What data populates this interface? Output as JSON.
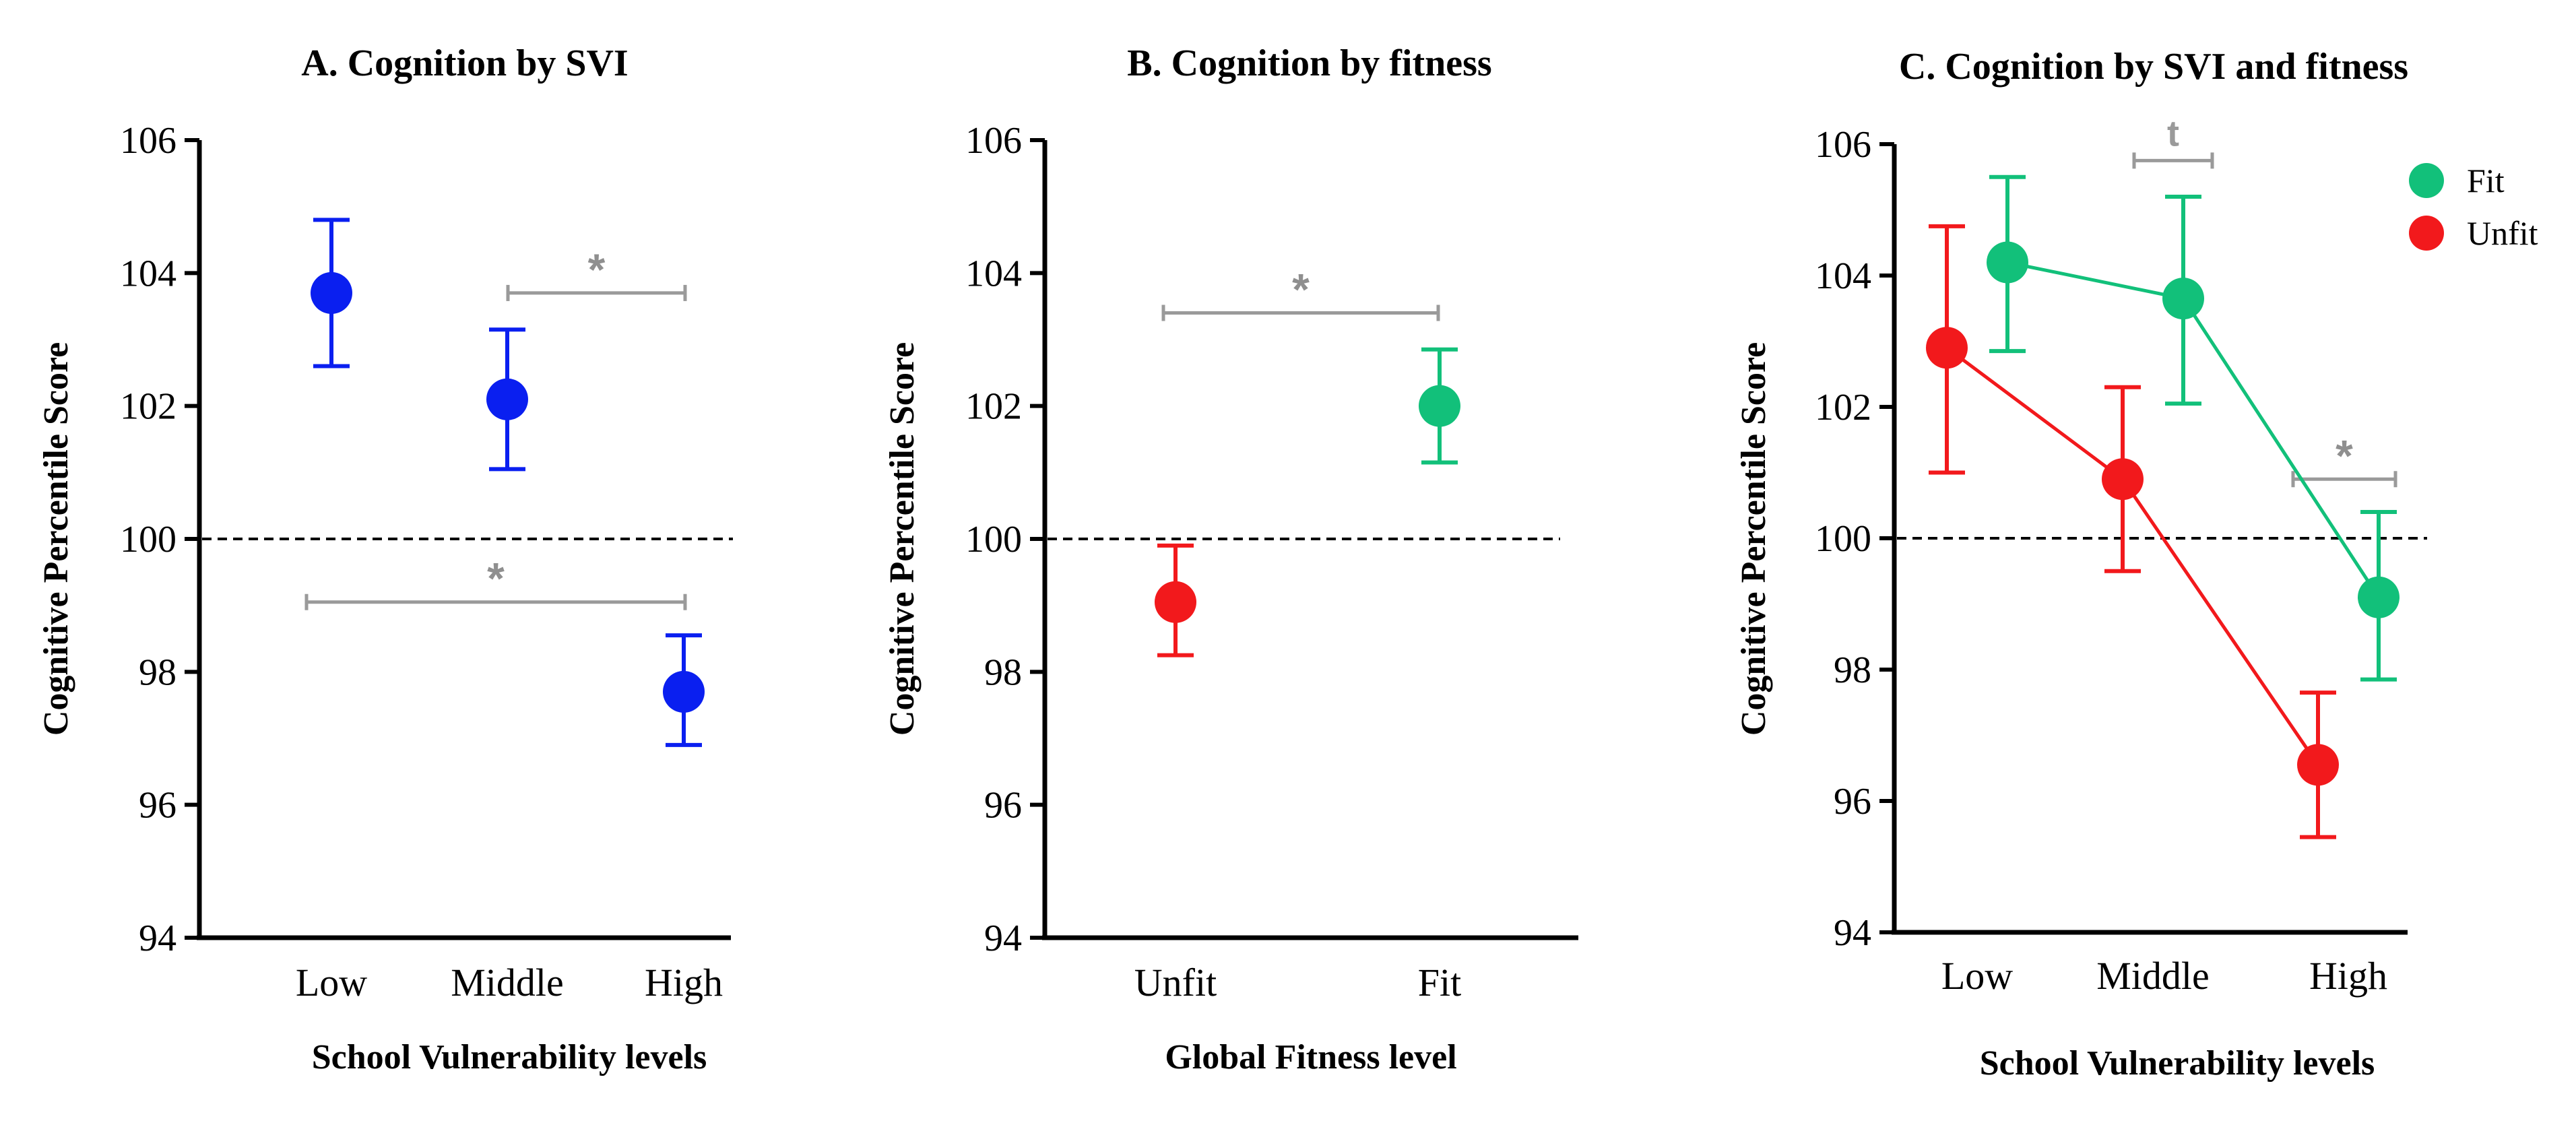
{
  "colors": {
    "blue": "#0a1ff0",
    "green": "#12c07a",
    "red": "#f2191c",
    "bracket": "#9a9a9a",
    "axis": "#000000"
  },
  "chart_data": [
    {
      "type": "scatter",
      "title": "A. Cognition by SVI",
      "xlabel": "School Vulnerability levels",
      "ylabel": "Cognitive Percentile Score",
      "ylim": [
        94,
        106
      ],
      "yticks": [
        94,
        96,
        98,
        100,
        102,
        104,
        106
      ],
      "reference_line": 100,
      "categories": [
        "Low",
        "Middle",
        "High"
      ],
      "series": [
        {
          "name": "SVI",
          "color": "#0a1ff0",
          "connect": false,
          "values": [
            103.7,
            102.1,
            97.7
          ],
          "lower": [
            102.6,
            101.05,
            96.9
          ],
          "upper": [
            104.8,
            103.15,
            98.55
          ]
        }
      ],
      "annotations": [
        {
          "label": "*",
          "from": 1,
          "to": 2,
          "y": 103.7
        },
        {
          "label": "*",
          "from": 0,
          "to": 2,
          "y": 99.05
        }
      ]
    },
    {
      "type": "scatter",
      "title": "B. Cognition by fitness",
      "xlabel": "Global Fitness level",
      "ylabel": "Cognitive Percentile Score",
      "ylim": [
        94,
        106
      ],
      "yticks": [
        94,
        96,
        98,
        100,
        102,
        104,
        106
      ],
      "reference_line": 100,
      "categories": [
        "Unfit",
        "Fit"
      ],
      "series": [
        {
          "name": "Unfit",
          "color": "#f2191c",
          "connect": false,
          "points": [
            {
              "x": 0,
              "y": 99.05,
              "lower": 98.25,
              "upper": 99.9
            }
          ]
        },
        {
          "name": "Fit",
          "color": "#12c07a",
          "connect": false,
          "points": [
            {
              "x": 1,
              "y": 102.0,
              "lower": 101.15,
              "upper": 102.85
            }
          ]
        }
      ],
      "annotations": [
        {
          "label": "*",
          "from": 0,
          "to": 1,
          "y": 103.4
        }
      ]
    },
    {
      "type": "line",
      "title": "C. Cognition by SVI and fitness",
      "xlabel": "School Vulnerability levels",
      "ylabel": "Cognitive Percentile Score",
      "ylim": [
        94,
        106
      ],
      "yticks": [
        94,
        96,
        98,
        100,
        102,
        104,
        106
      ],
      "reference_line": 100,
      "categories": [
        "Low",
        "Middle",
        "High"
      ],
      "legend": [
        "Fit",
        "Unfit"
      ],
      "series": [
        {
          "name": "Fit",
          "color": "#12c07a",
          "connect": true,
          "values": [
            104.2,
            103.65,
            99.1
          ],
          "lower": [
            102.85,
            102.05,
            97.85
          ],
          "upper": [
            105.5,
            105.2,
            100.4
          ]
        },
        {
          "name": "Unfit",
          "color": "#f2191c",
          "connect": true,
          "values": [
            102.9,
            100.9,
            96.55
          ],
          "lower": [
            101.0,
            99.5,
            95.45
          ],
          "upper": [
            104.75,
            102.3,
            97.65
          ]
        }
      ],
      "annotations": [
        {
          "label": "t",
          "from": 1,
          "to": 1,
          "y": 105.75
        },
        {
          "label": "*",
          "from": 2,
          "to": 2,
          "y": 100.9
        }
      ]
    }
  ]
}
